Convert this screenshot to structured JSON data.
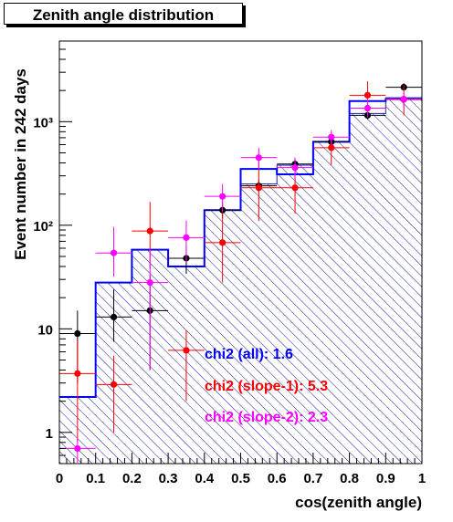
{
  "chart_data": {
    "type": "histogram-with-points",
    "title": "Zenith angle distribution",
    "xlabel": "cos(zenith angle)",
    "ylabel": "Event number in 242 days",
    "xlim": [
      0,
      1
    ],
    "ylim": [
      0.5,
      6000
    ],
    "yscale": "log",
    "xticks": [
      "0",
      "0.1",
      "0.2",
      "0.3",
      "0.4",
      "0.5",
      "0.6",
      "0.7",
      "0.8",
      "0.9",
      "1"
    ],
    "yticks": [
      "1",
      "10",
      "10²",
      "10³"
    ],
    "bin_edges": [
      0,
      0.1,
      0.2,
      0.3,
      0.4,
      0.5,
      0.6,
      0.7,
      0.8,
      0.9,
      1.0
    ],
    "hatched_histogram": [
      2.2,
      28,
      58,
      40,
      140,
      250,
      380,
      640,
      1200,
      1700
    ],
    "blue_histogram": [
      2.2,
      28,
      58,
      40,
      140,
      350,
      310,
      640,
      1580,
      1650
    ],
    "series": [
      {
        "color": "#000000",
        "x": [
          0.05,
          0.15,
          0.25,
          0.35,
          0.45,
          0.55,
          0.65,
          0.75,
          0.85,
          0.95
        ],
        "y": [
          9,
          13,
          15,
          48,
          140,
          240,
          390,
          640,
          1150,
          2150
        ],
        "err_low": [
          6.0,
          5.5,
          11.0,
          14,
          24,
          30,
          40,
          50,
          100,
          150
        ],
        "err_high": [
          6.0,
          11,
          18,
          16,
          26,
          35,
          50,
          60,
          120,
          200
        ]
      },
      {
        "color": "#ff0000",
        "x": [
          0.05,
          0.15,
          0.25,
          0.35,
          0.45,
          0.55,
          0.65,
          0.75,
          0.85,
          0.95
        ],
        "y": [
          3.7,
          2.9,
          88,
          6.2,
          68,
          230,
          230,
          560,
          1800,
          1650
        ],
        "err_low": [
          2.9,
          1.9,
          50,
          4.2,
          40,
          120,
          100,
          180,
          600,
          500
        ],
        "err_high": [
          4.0,
          2.6,
          80,
          3.5,
          65,
          180,
          150,
          150,
          650,
          600
        ]
      },
      {
        "color": "#ff00ff",
        "x": [
          0.05,
          0.15,
          0.25,
          0.35,
          0.45,
          0.55,
          0.65,
          0.75,
          0.85,
          0.95
        ],
        "y": [
          0.7,
          54,
          28,
          76,
          190,
          450,
          360,
          710,
          1350,
          1640
        ],
        "err_low": [
          0.2,
          22,
          24,
          32,
          55,
          100,
          80,
          120,
          250,
          300
        ],
        "err_high": [
          0.2,
          42,
          30,
          35,
          60,
          110,
          90,
          120,
          300,
          300
        ]
      }
    ],
    "annotations": [
      {
        "text": "chi2 (all): 1.6",
        "color": "#0000ff"
      },
      {
        "text": "chi2 (slope-1): 5.3",
        "color": "#ff0000"
      },
      {
        "text": "chi2 (slope-2): 2.3",
        "color": "#ff00ff"
      }
    ],
    "colors": {
      "hatch": "#1a1aa6",
      "blue": "#0000ff",
      "frame": "#000000"
    }
  }
}
